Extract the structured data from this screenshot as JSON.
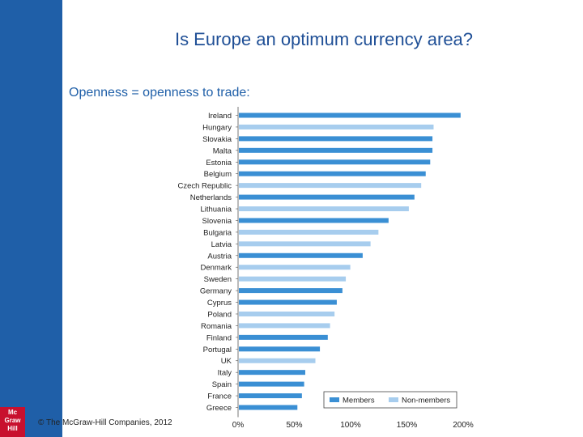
{
  "slide": {
    "title": "Is Europe an optimum currency area?",
    "subtitle": "Openness = openness to trade:",
    "copyright": "© The McGraw-Hill Companies, 2012",
    "logo_lines": [
      "Mc",
      "Graw",
      "Hill"
    ]
  },
  "colors": {
    "members": "#3a8fd4",
    "non_members": "#a7cdee",
    "sidebar": "#1f5fa8"
  },
  "chart_data": {
    "type": "bar",
    "orientation": "horizontal",
    "categories": [
      "Ireland",
      "Hungary",
      "Slovakia",
      "Malta",
      "Estonia",
      "Belgium",
      "Czech Republic",
      "Netherlands",
      "Lithuania",
      "Slovenia",
      "Bulgaria",
      "Latvia",
      "Austria",
      "Denmark",
      "Sweden",
      "Germany",
      "Cyprus",
      "Poland",
      "Romania",
      "Finland",
      "Portugal",
      "UK",
      "Italy",
      "Spain",
      "France",
      "Greece"
    ],
    "values": [
      197,
      173,
      172,
      172,
      170,
      166,
      162,
      156,
      151,
      133,
      124,
      117,
      110,
      99,
      95,
      92,
      87,
      85,
      81,
      79,
      72,
      68,
      59,
      58,
      56,
      52
    ],
    "groups": [
      "Members",
      "Non-members",
      "Members",
      "Members",
      "Members",
      "Members",
      "Non-members",
      "Members",
      "Non-members",
      "Members",
      "Non-members",
      "Non-members",
      "Members",
      "Non-members",
      "Non-members",
      "Members",
      "Members",
      "Non-members",
      "Non-members",
      "Members",
      "Members",
      "Non-members",
      "Members",
      "Members",
      "Members",
      "Members"
    ],
    "xticks": [
      "0%",
      "50%",
      "100%",
      "150%",
      "200%"
    ],
    "xlim": [
      0,
      200
    ],
    "legend": [
      "Members",
      "Non-members"
    ],
    "legend_position": "bottom-right"
  }
}
